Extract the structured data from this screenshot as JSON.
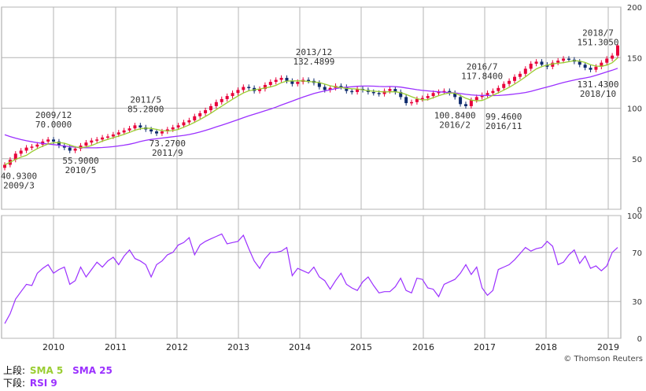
{
  "legend": {
    "upper_label": "上段:",
    "sma5": "SMA 5",
    "sma25": "SMA 25",
    "lower_label": "下段:",
    "rsi": "RSI 9"
  },
  "copyright": "© Thomson Reuters",
  "colors": {
    "up": "#e8003a",
    "down": "#0f2c6e",
    "sma5": "#9acd32",
    "sma25": "#9b30ff",
    "rsi": "#9b30ff",
    "grid": "#b4b4b4",
    "frame": "#a0a0a0"
  },
  "chart_data": [
    {
      "type": "candlestick",
      "panel": "upper",
      "ylim": [
        0,
        200
      ],
      "yticks": [
        "0",
        "50",
        "100",
        "150",
        "200"
      ],
      "xticks": [
        "2010",
        "2011",
        "2012",
        "2013",
        "2014",
        "2015",
        "2016",
        "2017",
        "2018",
        "2019"
      ],
      "grid": true,
      "series": [
        {
          "name": "SMA 5",
          "line": "sma5"
        },
        {
          "name": "SMA 25",
          "line": "sma25"
        }
      ],
      "start": "2009/3",
      "closes": [
        44,
        49,
        55,
        58,
        61,
        62,
        64,
        67,
        69,
        67,
        63,
        61,
        58,
        60,
        63,
        66,
        68,
        69,
        71,
        72,
        74,
        76,
        78,
        80,
        83,
        81,
        79,
        77,
        75,
        77,
        79,
        81,
        83,
        86,
        88,
        92,
        95,
        98,
        102,
        106,
        109,
        112,
        115,
        118,
        121,
        120,
        117,
        119,
        123,
        126,
        128,
        130,
        127,
        124,
        126,
        128,
        127,
        125,
        121,
        118,
        120,
        122,
        121,
        117,
        116,
        119,
        118,
        116,
        115,
        114,
        117,
        119,
        116,
        111,
        105,
        106,
        109,
        110,
        112,
        115,
        116,
        117,
        115,
        111,
        104,
        102,
        108,
        111,
        113,
        115,
        117,
        120,
        124,
        127,
        131,
        134,
        139,
        144,
        146,
        143,
        141,
        145,
        147,
        149,
        148,
        146,
        143,
        140,
        138,
        141,
        145,
        149,
        152,
        162
      ],
      "annotations": [
        {
          "text": "40.9300",
          "date": "2009/3",
          "value": 40.93,
          "pos": "low"
        },
        {
          "text": "70.0000",
          "date": "2009/12",
          "value": 70.0,
          "pos": "high"
        },
        {
          "text": "55.9000",
          "date": "2010/5",
          "value": 55.9,
          "pos": "low"
        },
        {
          "text": "85.2800",
          "date": "2011/5",
          "value": 85.28,
          "pos": "high"
        },
        {
          "text": "73.2700",
          "date": "2011/9",
          "value": 73.27,
          "pos": "low"
        },
        {
          "text": "132.4899",
          "date": "2013/12",
          "value": 132.4899,
          "pos": "high"
        },
        {
          "text": "100.8400",
          "date": "2016/2",
          "value": 100.84,
          "pos": "low"
        },
        {
          "text": "117.8400",
          "date": "2016/7",
          "value": 117.84,
          "pos": "high"
        },
        {
          "text": "99.4600",
          "date": "2016/11",
          "value": 99.46,
          "pos": "low"
        },
        {
          "text": "151.3050",
          "date": "2018/7",
          "value": 151.305,
          "pos": "high"
        },
        {
          "text": "131.4300",
          "date": "2018/10",
          "value": 131.43,
          "pos": "low"
        }
      ]
    },
    {
      "type": "line",
      "panel": "lower",
      "ylim": [
        0,
        100
      ],
      "yticks": [
        "0",
        "30",
        "70",
        "100"
      ],
      "xticks": [
        "2010",
        "2011",
        "2012",
        "2013",
        "2014",
        "2015",
        "2016",
        "2017",
        "2018",
        "2019"
      ],
      "grid": true,
      "series": [
        {
          "name": "RSI 9",
          "values": [
            12,
            20,
            32,
            38,
            44,
            43,
            53,
            57,
            60,
            53,
            56,
            58,
            44,
            47,
            58,
            50,
            56,
            62,
            58,
            63,
            66,
            60,
            67,
            72,
            65,
            63,
            60,
            50,
            60,
            63,
            68,
            70,
            76,
            78,
            82,
            68,
            76,
            79,
            81,
            83,
            85,
            77,
            78,
            79,
            84,
            73,
            63,
            57,
            65,
            70,
            70,
            71,
            74,
            51,
            57,
            55,
            53,
            58,
            50,
            47,
            40,
            47,
            53,
            44,
            41,
            39,
            46,
            50,
            43,
            37,
            38,
            38,
            42,
            49,
            39,
            37,
            49,
            48,
            41,
            40,
            34,
            44,
            46,
            48,
            53,
            60,
            52,
            58,
            41,
            35,
            39,
            56,
            58,
            60,
            64,
            69,
            74,
            71,
            73,
            74,
            79,
            75,
            60,
            62,
            68,
            72,
            61,
            67,
            57,
            59,
            55,
            59,
            70,
            74
          ]
        }
      ]
    }
  ]
}
